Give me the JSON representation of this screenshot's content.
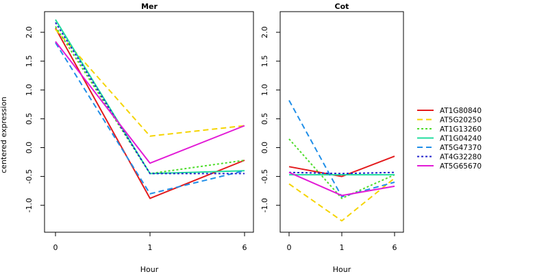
{
  "chart_data": {
    "type": "line",
    "ylabel": "centered expression",
    "xlabel": "Hour",
    "x": [
      "0",
      "1",
      "6"
    ],
    "ylim": [
      -1.45,
      2.45
    ],
    "yticks": [
      -1.0,
      -0.5,
      0.0,
      0.5,
      1.0,
      1.5,
      2.0
    ],
    "legend_position": "right",
    "series_styles": [
      {
        "name": "AT1G80840",
        "color": "#e31a1c",
        "dash": "solid"
      },
      {
        "name": "AT5G20250",
        "color": "#f5d400",
        "dash": "dashed"
      },
      {
        "name": "AT1G13260",
        "color": "#4ddc2a",
        "dash": "dotted"
      },
      {
        "name": "AT1G04240",
        "color": "#1fdc9c",
        "dash": "solid"
      },
      {
        "name": "AT5G47370",
        "color": "#1f8ee8",
        "dash": "dashed"
      },
      {
        "name": "AT4G32280",
        "color": "#2222cc",
        "dash": "dotted"
      },
      {
        "name": "AT5G65670",
        "color": "#e21ad6",
        "dash": "solid"
      }
    ],
    "panels": [
      {
        "title": "Mer",
        "series": [
          {
            "name": "AT1G80840",
            "values": [
              2.07,
              -0.88,
              -0.22
            ]
          },
          {
            "name": "AT5G20250",
            "values": [
              2.05,
              0.2,
              0.38
            ]
          },
          {
            "name": "AT1G13260",
            "values": [
              2.1,
              -0.45,
              -0.22
            ]
          },
          {
            "name": "AT1G04240",
            "values": [
              2.22,
              -0.45,
              -0.4
            ]
          },
          {
            "name": "AT5G47370",
            "values": [
              1.82,
              -0.8,
              -0.4
            ]
          },
          {
            "name": "AT4G32280",
            "values": [
              2.17,
              -0.45,
              -0.45
            ]
          },
          {
            "name": "AT5G65670",
            "values": [
              1.84,
              -0.27,
              0.38
            ]
          }
        ]
      },
      {
        "title": "Cot",
        "series": [
          {
            "name": "AT1G80840",
            "values": [
              -0.33,
              -0.5,
              -0.15
            ]
          },
          {
            "name": "AT5G20250",
            "values": [
              -0.63,
              -1.27,
              -0.53
            ]
          },
          {
            "name": "AT1G13260",
            "values": [
              0.15,
              -0.88,
              -0.47
            ]
          },
          {
            "name": "AT1G04240",
            "values": [
              -0.47,
              -0.47,
              -0.47
            ]
          },
          {
            "name": "AT5G47370",
            "values": [
              0.82,
              -0.85,
              -0.6
            ]
          },
          {
            "name": "AT4G32280",
            "values": [
              -0.43,
              -0.45,
              -0.43
            ]
          },
          {
            "name": "AT5G65670",
            "values": [
              -0.43,
              -0.83,
              -0.67
            ]
          }
        ]
      }
    ]
  }
}
